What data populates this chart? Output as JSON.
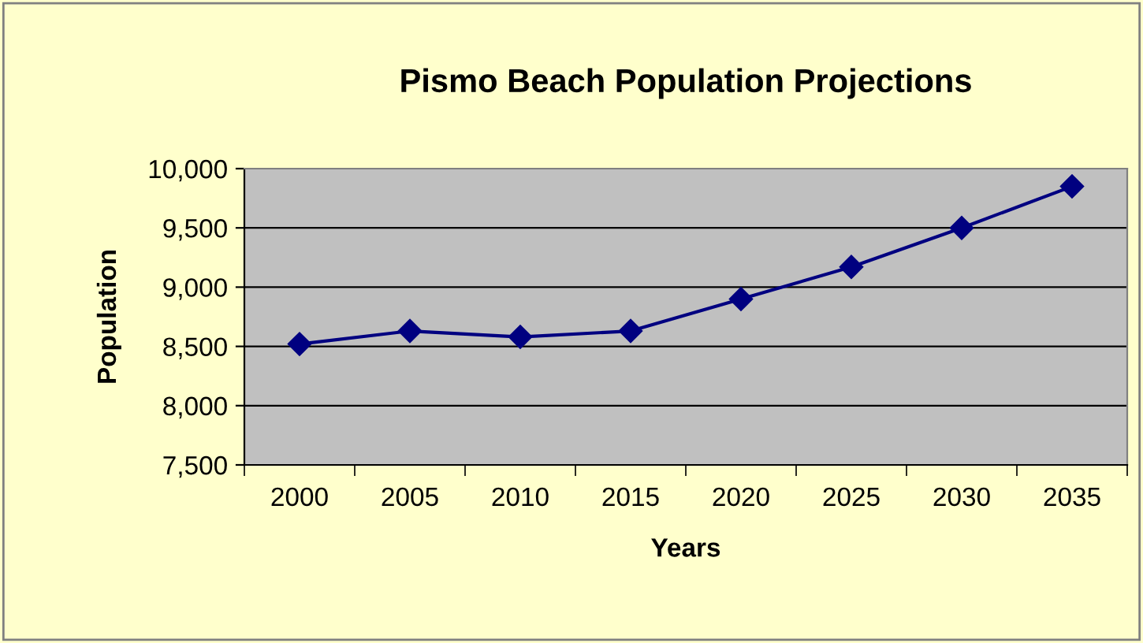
{
  "chart_data": {
    "type": "line",
    "title": "Pismo Beach Population Projections",
    "xlabel": "Years",
    "ylabel": "Population",
    "categories": [
      "2000",
      "2005",
      "2010",
      "2015",
      "2020",
      "2025",
      "2030",
      "2035"
    ],
    "series": [
      {
        "color": "#000080",
        "values": [
          8520,
          8630,
          8580,
          8630,
          8900,
          9170,
          9500,
          9850
        ]
      }
    ],
    "ylim": [
      7500,
      10000
    ],
    "yticks": [
      {
        "value": 7500,
        "label": "7,500"
      },
      {
        "value": 8000,
        "label": "8,000"
      },
      {
        "value": 8500,
        "label": "8,500"
      },
      {
        "value": 9000,
        "label": "9,000"
      },
      {
        "value": 9500,
        "label": "9,500"
      },
      {
        "value": 10000,
        "label": "10,000"
      }
    ],
    "grid": "y",
    "marker": "diamond",
    "line_style": "solid",
    "legend": false
  }
}
